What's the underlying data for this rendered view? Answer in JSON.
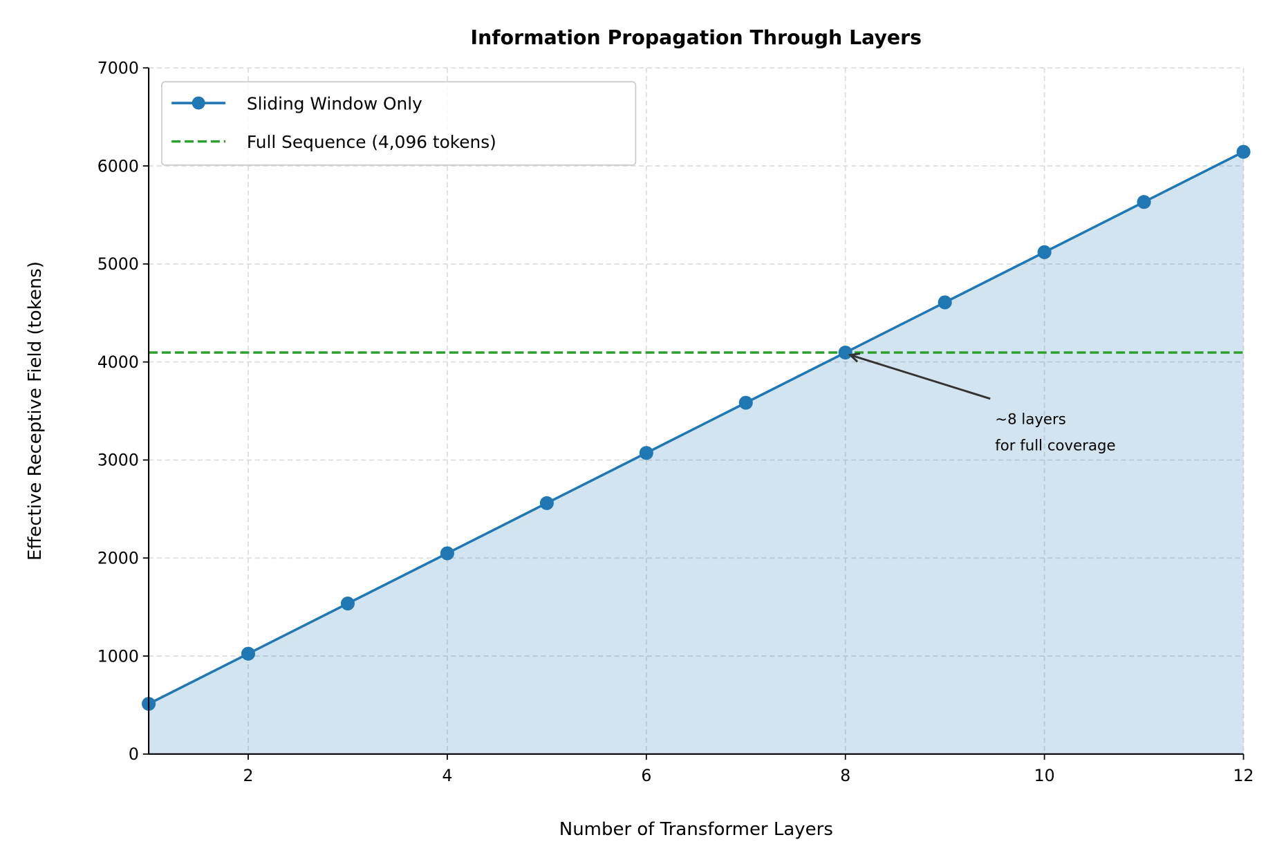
{
  "chart_data": {
    "type": "line",
    "title": "Information Propagation Through Layers",
    "xlabel": "Number of Transformer Layers",
    "ylabel": "Effective Receptive Field (tokens)",
    "xlim": [
      1,
      12
    ],
    "ylim": [
      0,
      7000
    ],
    "x_ticks": [
      2,
      4,
      6,
      8,
      10,
      12
    ],
    "y_ticks": [
      0,
      1000,
      2000,
      3000,
      4000,
      5000,
      6000,
      7000
    ],
    "grid": true,
    "legend_position": "top-left",
    "series": [
      {
        "name": "Sliding Window Only",
        "color": "#1f77b4",
        "style": "solid line with circle markers, area filled below",
        "x": [
          1,
          2,
          3,
          4,
          5,
          6,
          7,
          8,
          9,
          10,
          11,
          12
        ],
        "y": [
          512,
          1024,
          1536,
          2048,
          2560,
          3072,
          3584,
          4096,
          4608,
          5120,
          5632,
          6144
        ]
      },
      {
        "name": "Full Sequence (4,096 tokens)",
        "color": "#2ca02c",
        "style": "dashed horizontal line",
        "y": 4096
      }
    ],
    "annotation": {
      "lines": [
        "~8 layers",
        "for full coverage"
      ],
      "target": {
        "x": 8,
        "y": 4096
      },
      "text_at": {
        "x": 9.5,
        "y": 3400
      }
    }
  }
}
